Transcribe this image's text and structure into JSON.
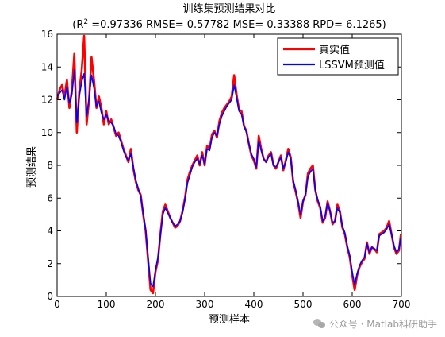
{
  "chart_data": {
    "type": "line",
    "title": "训练集预测结果对比",
    "subtitle_prefix": "(R",
    "subtitle_sup": "2",
    "subtitle_rest": " =0.97336 RMSE= 0.57782 MSE= 0.33388 RPD= 6.1265)",
    "xlabel": "预测样本",
    "ylabel": "预测结果",
    "xlim": [
      0,
      700
    ],
    "ylim": [
      0,
      16
    ],
    "xticks": [
      0,
      100,
      200,
      300,
      400,
      500,
      600,
      700
    ],
    "yticks": [
      0,
      2,
      4,
      6,
      8,
      10,
      12,
      14,
      16
    ],
    "grid": false,
    "legend_position": "top-right",
    "colors": {
      "true": "#ff0000",
      "pred": "#0000ff"
    },
    "series": [
      {
        "name": "真实值",
        "x": [
          0,
          5,
          10,
          15,
          20,
          25,
          30,
          35,
          40,
          45,
          50,
          55,
          60,
          65,
          70,
          75,
          80,
          85,
          90,
          95,
          100,
          105,
          110,
          115,
          120,
          125,
          130,
          135,
          140,
          145,
          150,
          155,
          160,
          165,
          170,
          175,
          180,
          185,
          190,
          195,
          200,
          205,
          210,
          215,
          220,
          225,
          230,
          235,
          240,
          245,
          250,
          255,
          260,
          265,
          270,
          275,
          280,
          285,
          290,
          295,
          300,
          305,
          310,
          315,
          320,
          325,
          330,
          335,
          340,
          345,
          350,
          355,
          360,
          365,
          370,
          375,
          380,
          385,
          390,
          395,
          400,
          405,
          410,
          415,
          420,
          425,
          430,
          435,
          440,
          445,
          450,
          455,
          460,
          465,
          470,
          475,
          480,
          485,
          490,
          495,
          500,
          505,
          510,
          515,
          520,
          525,
          530,
          535,
          540,
          545,
          550,
          555,
          560,
          565,
          570,
          575,
          580,
          585,
          590,
          595,
          600,
          605,
          610,
          615,
          620,
          625,
          630,
          635,
          640,
          645,
          650,
          655,
          660,
          665,
          670,
          675,
          680,
          685,
          690,
          695,
          699
        ],
        "values": [
          12.0,
          12.6,
          12.9,
          12.2,
          13.2,
          11.5,
          12.6,
          14.8,
          10.0,
          12.5,
          13.8,
          15.9,
          10.5,
          12.0,
          14.6,
          13.2,
          11.5,
          12.2,
          11.5,
          10.5,
          11.3,
          10.5,
          10.8,
          10.3,
          9.8,
          10.0,
          9.5,
          9.0,
          8.6,
          8.2,
          9.0,
          7.8,
          7.0,
          6.5,
          6.2,
          5.0,
          4.0,
          2.2,
          0.4,
          0.2,
          1.5,
          2.2,
          3.8,
          5.2,
          5.6,
          5.2,
          4.8,
          4.5,
          4.2,
          4.3,
          4.6,
          5.2,
          6.0,
          7.1,
          7.6,
          8.0,
          8.3,
          8.6,
          8.0,
          8.8,
          8.0,
          9.2,
          9.0,
          9.9,
          10.1,
          9.7,
          10.7,
          11.2,
          11.5,
          11.7,
          11.9,
          12.2,
          13.5,
          12.3,
          11.4,
          11.3,
          10.4,
          10.1,
          9.3,
          8.6,
          8.3,
          7.8,
          9.8,
          9.0,
          8.4,
          8.2,
          8.6,
          8.8,
          8.0,
          7.8,
          8.2,
          8.6,
          7.7,
          8.3,
          9.0,
          8.5,
          7.0,
          6.4,
          5.7,
          4.8,
          5.8,
          6.2,
          7.5,
          7.8,
          8.0,
          6.5,
          5.8,
          5.4,
          4.5,
          4.8,
          5.8,
          5.2,
          4.4,
          4.6,
          5.6,
          5.2,
          4.2,
          3.8,
          3.0,
          2.4,
          1.3,
          0.4,
          1.3,
          1.8,
          2.1,
          2.3,
          3.3,
          2.6,
          3.0,
          2.9,
          2.7,
          3.8,
          3.9,
          4.0,
          4.2,
          4.6,
          3.8,
          3.0,
          2.6,
          2.8,
          3.8
        ]
      },
      {
        "name": "LSSVM预测值",
        "x": [
          0,
          5,
          10,
          15,
          20,
          25,
          30,
          35,
          40,
          45,
          50,
          55,
          60,
          65,
          70,
          75,
          80,
          85,
          90,
          95,
          100,
          105,
          110,
          115,
          120,
          125,
          130,
          135,
          140,
          145,
          150,
          155,
          160,
          165,
          170,
          175,
          180,
          185,
          190,
          195,
          200,
          205,
          210,
          215,
          220,
          225,
          230,
          235,
          240,
          245,
          250,
          255,
          260,
          265,
          270,
          275,
          280,
          285,
          290,
          295,
          300,
          305,
          310,
          315,
          320,
          325,
          330,
          335,
          340,
          345,
          350,
          355,
          360,
          365,
          370,
          375,
          380,
          385,
          390,
          395,
          400,
          405,
          410,
          415,
          420,
          425,
          430,
          435,
          440,
          445,
          450,
          455,
          460,
          465,
          470,
          475,
          480,
          485,
          490,
          495,
          500,
          505,
          510,
          515,
          520,
          525,
          530,
          535,
          540,
          545,
          550,
          555,
          560,
          565,
          570,
          575,
          580,
          585,
          590,
          595,
          600,
          605,
          610,
          615,
          620,
          625,
          630,
          635,
          640,
          645,
          650,
          655,
          660,
          665,
          670,
          675,
          680,
          685,
          690,
          695,
          699
        ],
        "values": [
          12.2,
          12.4,
          12.6,
          12.0,
          12.8,
          11.8,
          12.3,
          13.8,
          10.6,
          12.2,
          13.1,
          13.6,
          11.0,
          12.1,
          13.5,
          12.7,
          11.6,
          11.9,
          11.2,
          10.8,
          11.1,
          10.7,
          10.6,
          10.4,
          9.9,
          9.8,
          9.4,
          8.9,
          8.5,
          8.3,
          8.7,
          7.9,
          7.1,
          6.6,
          6.1,
          5.1,
          4.1,
          2.4,
          0.8,
          0.6,
          1.6,
          2.4,
          3.7,
          5.0,
          5.4,
          5.1,
          4.8,
          4.5,
          4.3,
          4.4,
          4.6,
          5.1,
          5.9,
          6.9,
          7.4,
          7.9,
          8.2,
          8.4,
          8.1,
          8.6,
          8.1,
          9.0,
          8.9,
          9.7,
          10.0,
          9.8,
          10.5,
          11.0,
          11.3,
          11.6,
          11.8,
          12.0,
          12.9,
          12.1,
          11.3,
          11.1,
          10.4,
          10.0,
          9.3,
          8.7,
          8.4,
          7.9,
          9.5,
          8.9,
          8.4,
          8.2,
          8.5,
          8.7,
          8.0,
          7.9,
          8.2,
          8.5,
          7.8,
          8.2,
          8.8,
          8.4,
          7.1,
          6.5,
          5.8,
          5.0,
          5.8,
          6.2,
          7.3,
          7.6,
          7.8,
          6.5,
          5.9,
          5.5,
          4.6,
          4.9,
          5.7,
          5.2,
          4.5,
          4.6,
          5.4,
          5.1,
          4.3,
          3.9,
          3.1,
          2.5,
          1.5,
          0.7,
          1.4,
          1.9,
          2.2,
          2.4,
          3.2,
          2.7,
          3.0,
          2.9,
          2.8,
          3.7,
          3.8,
          3.9,
          4.1,
          4.4,
          3.8,
          3.1,
          2.7,
          2.9,
          3.6
        ]
      }
    ]
  },
  "watermark": {
    "text": "公众号 · Matlab科研助手"
  }
}
